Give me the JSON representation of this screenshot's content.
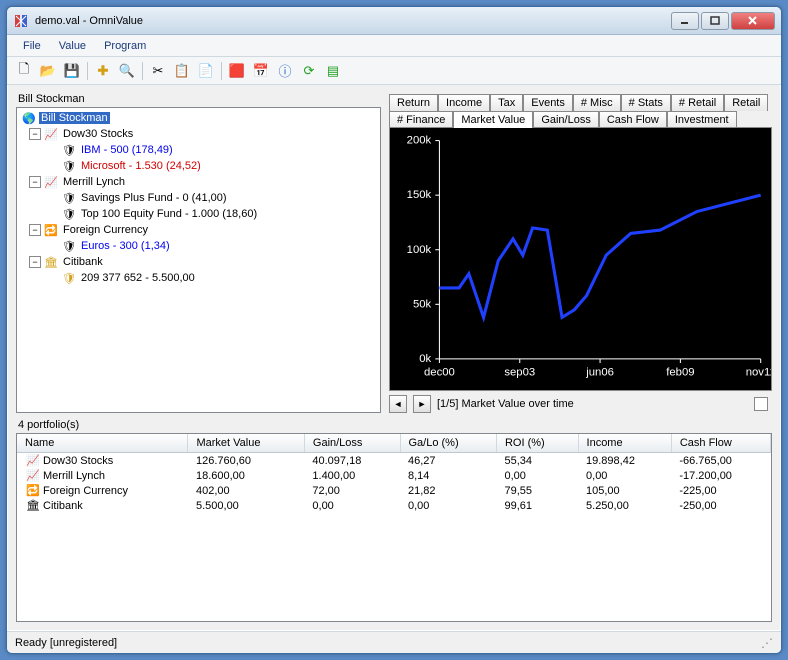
{
  "window": {
    "title": "demo.val - OmniValue"
  },
  "menu": {
    "file": "File",
    "value": "Value",
    "program": "Program"
  },
  "tree": {
    "header": "Bill Stockman",
    "root": "Bill Stockman",
    "n1": "Dow30 Stocks",
    "n1a": "IBM - 500 (178,49)",
    "n1b": "Microsoft - 1.530 (24,52)",
    "n2": "Merrill Lynch",
    "n2a": "Savings Plus Fund - 0 (41,00)",
    "n2b": "Top 100 Equity Fund - 1.000 (18,60)",
    "n3": "Foreign Currency",
    "n3a": "Euros - 300 (1,34)",
    "n4": "Citibank",
    "n4a": "209 377 652 - 5.500,00"
  },
  "tabs_row1": [
    "Return",
    "Income",
    "Tax",
    "Events",
    "# Misc",
    "# Stats",
    "# Retail",
    "Retail"
  ],
  "tabs_row2": [
    "# Finance",
    "Market Value",
    "Gain/Loss",
    "Cash Flow",
    "Investment"
  ],
  "active_tab": "Market Value",
  "chart": {
    "background": "#000000",
    "axis_color": "#ffffff",
    "line_color": "#2040ff",
    "line_width": 3,
    "y_ticks": [
      "0k",
      "50k",
      "100k",
      "150k",
      "200k"
    ],
    "x_ticks": [
      "dec00",
      "sep03",
      "jun06",
      "feb09",
      "nov11"
    ],
    "xlim": [
      0,
      131
    ],
    "ylim": [
      0,
      200
    ],
    "points": [
      [
        0,
        65
      ],
      [
        8,
        65
      ],
      [
        12,
        78
      ],
      [
        18,
        38
      ],
      [
        24,
        90
      ],
      [
        30,
        110
      ],
      [
        34,
        95
      ],
      [
        38,
        120
      ],
      [
        44,
        118
      ],
      [
        50,
        38
      ],
      [
        55,
        45
      ],
      [
        60,
        58
      ],
      [
        68,
        95
      ],
      [
        78,
        115
      ],
      [
        90,
        118
      ],
      [
        105,
        135
      ],
      [
        131,
        150
      ]
    ]
  },
  "chart_nav": {
    "label": "[1/5] Market Value over time"
  },
  "table": {
    "count_label": "4 portfolio(s)",
    "columns": [
      "Name",
      "Market Value",
      "Gain/Loss",
      "Ga/Lo (%)",
      "ROI (%)",
      "Income",
      "Cash Flow"
    ],
    "rows": [
      {
        "icon": "📈",
        "name": "Dow30 Stocks",
        "mv": "126.760,60",
        "gl": "40.097,18",
        "glp": "46,27",
        "roi": "55,34",
        "inc": "19.898,42",
        "cf": "-66.765,00"
      },
      {
        "icon": "📈",
        "name": "Merrill Lynch",
        "mv": "18.600,00",
        "gl": "1.400,00",
        "glp": "8,14",
        "roi": "0,00",
        "inc": "0,00",
        "cf": "-17.200,00"
      },
      {
        "icon": "🔁",
        "name": "Foreign Currency",
        "mv": "402,00",
        "gl": "72,00",
        "glp": "21,82",
        "roi": "79,55",
        "inc": "105,00",
        "cf": "-225,00"
      },
      {
        "icon": "🏛",
        "name": "Citibank",
        "mv": "5.500,00",
        "gl": "0,00",
        "glp": "0,00",
        "roi": "99,61",
        "inc": "5.250,00",
        "cf": "-250,00"
      }
    ]
  },
  "status": "Ready [unregistered]",
  "colors": {
    "sel_bg": "#316ac5",
    "link": "#0000ee",
    "neg": "#d00000",
    "icon_gold": "#d4a017",
    "icon_red": "#d04040"
  }
}
